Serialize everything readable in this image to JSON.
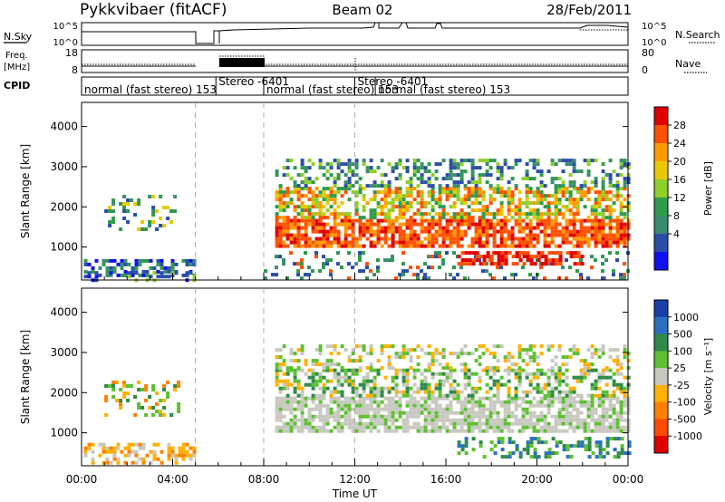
{
  "header": {
    "station": "Pykkvibaer (fitACF)",
    "beam": "Beam 02",
    "date": "28/Feb/2011"
  },
  "panels": {
    "nsky_label": "N.Sky",
    "nsearch_label": "N.Search",
    "freq_label_top": "Freq.",
    "freq_label_bottom": "[MHz]",
    "nave_label": "Nave",
    "cpid_label": "CPID",
    "noise_ticks_left": [
      "10^5",
      "10^0"
    ],
    "noise_ticks_right": [
      "10^5",
      "10^0"
    ],
    "freq_ticks": [
      "18",
      "8"
    ],
    "nave_ticks": [
      "80",
      "0"
    ]
  },
  "cpid_segments": [
    {
      "label": "normal (fast stereo)  153",
      "start_h": 0.0
    },
    {
      "label": "Stereo  -6401",
      "start_h": 5.9
    },
    {
      "label": "normal (fast stereo)  153",
      "start_h": 8.0
    },
    {
      "label": "Stereo  -6401",
      "start_h": 12.0
    },
    {
      "label": "normal (fast stereo)  153",
      "start_h": 12.9
    }
  ],
  "chart_data": [
    {
      "type": "heatmap",
      "quantity": "Power",
      "ylabel": "Slant Range [km]",
      "xlabel": "Time UT",
      "x_ticks": [
        "00:00",
        "04:00",
        "08:00",
        "12:00",
        "16:00",
        "20:00",
        "00:00"
      ],
      "xlim_hours": [
        0,
        24
      ],
      "ylim_km": [
        180,
        4600
      ],
      "y_ticks": [
        "1000",
        "2000",
        "3000",
        "4000"
      ],
      "colorbar_label": "Power [dB]",
      "colorbar_ticks": [
        "28",
        "24",
        "20",
        "16",
        "12",
        "8",
        "4"
      ],
      "colorbar_colors": [
        "#e00000",
        "#ff5000",
        "#ff9a00",
        "#e8c800",
        "#8ecf2a",
        "#2e9a4a",
        "#3a8c6e",
        "#2a4ea8",
        "#1010f0"
      ]
    },
    {
      "type": "heatmap",
      "quantity": "Velocity",
      "ylabel": "Slant Range [km]",
      "xlabel": "Time UT",
      "x_ticks": [
        "00:00",
        "04:00",
        "08:00",
        "12:00",
        "16:00",
        "20:00",
        "00:00"
      ],
      "xlim_hours": [
        0,
        24
      ],
      "ylim_km": [
        180,
        4600
      ],
      "y_ticks": [
        "1000",
        "2000",
        "3000",
        "4000"
      ],
      "colorbar_label": "Velocity  [m s⁻¹]",
      "colorbar_ticks": [
        "1000",
        "500",
        "100",
        "25",
        "-25",
        "-100",
        "-500",
        "-1000"
      ],
      "colorbar_colors": [
        "#1a3fa8",
        "#2a70c0",
        "#2e8a48",
        "#5cc030",
        "#c8c8c0",
        "#ffb000",
        "#ff8000",
        "#ff4a00",
        "#e00000"
      ]
    }
  ]
}
